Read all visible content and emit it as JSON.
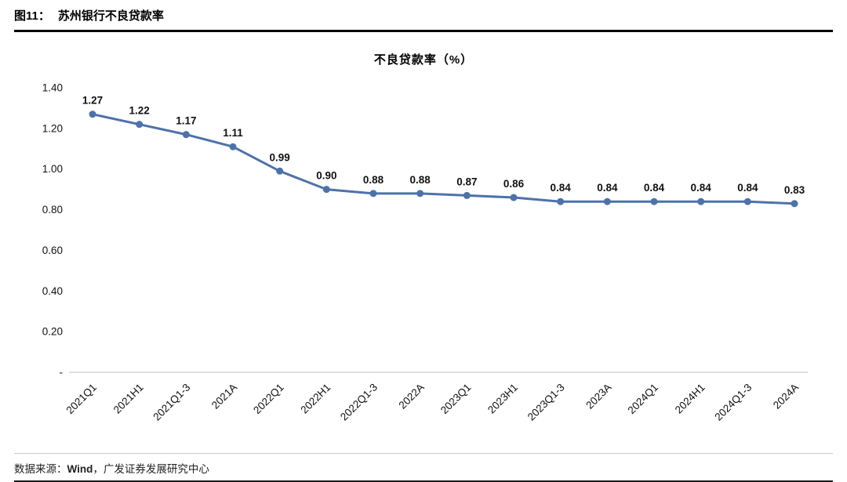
{
  "header": {
    "figure_label": "图11：",
    "figure_title": "苏州银行不良贷款率"
  },
  "chart_data": {
    "type": "line",
    "title": "不良贷款率（%）",
    "categories": [
      "2021Q1",
      "2021H1",
      "2021Q1-3",
      "2021A",
      "2022Q1",
      "2022H1",
      "2022Q1-3",
      "2022A",
      "2023Q1",
      "2023H1",
      "2023Q1-3",
      "2023A",
      "2024Q1",
      "2024H1",
      "2024Q1-3",
      "2024A"
    ],
    "values": [
      1.27,
      1.22,
      1.17,
      1.11,
      0.99,
      0.9,
      0.88,
      0.88,
      0.87,
      0.86,
      0.84,
      0.84,
      0.84,
      0.84,
      0.84,
      0.83
    ],
    "ylim": [
      0,
      1.4
    ],
    "yticks": [
      {
        "label": "1.40",
        "value": 1.4
      },
      {
        "label": "1.20",
        "value": 1.2
      },
      {
        "label": "1.00",
        "value": 1.0
      },
      {
        "label": "0.80",
        "value": 0.8
      },
      {
        "label": "0.60",
        "value": 0.6
      },
      {
        "label": "0.40",
        "value": 0.4
      },
      {
        "label": "0.20",
        "value": 0.2
      },
      {
        "label": "-",
        "value": 0
      }
    ],
    "grid": false,
    "legend": "none",
    "line_color": "#4d72aa",
    "marker_color": "#4d72aa",
    "axis_color": "#bfbfbf",
    "label_color": "#111111"
  },
  "footer": {
    "source_prefix": "数据来源：",
    "source_name": "Wind",
    "source_suffix": "，广发证券发展研究中心"
  }
}
